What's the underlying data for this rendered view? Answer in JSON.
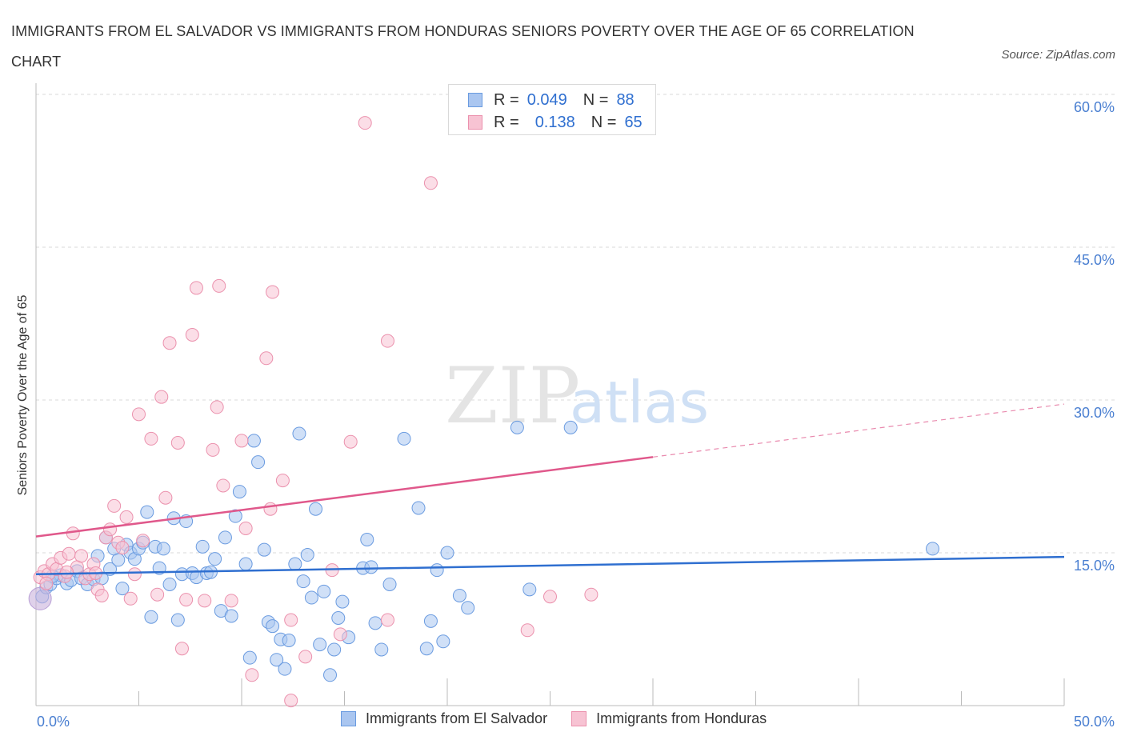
{
  "title": "IMMIGRANTS FROM EL SALVADOR VS IMMIGRANTS FROM HONDURAS SENIORS POVERTY OVER THE AGE OF 65 CORRELATION CHART",
  "source": "Source: ZipAtlas.com",
  "watermark": {
    "zip": "ZIP",
    "atlas": "atlas"
  },
  "legend": {
    "r_label": "R =",
    "n_label": "N =",
    "salvador": {
      "r": "0.049",
      "n": "88"
    },
    "honduras": {
      "r": "0.138",
      "n": "65"
    }
  },
  "colors": {
    "salvador_fill": "#aac6f0",
    "salvador_stroke": "#6a9be0",
    "salvador_line": "#2f6fd0",
    "honduras_fill": "#f7c3d3",
    "honduras_stroke": "#eb91ad",
    "honduras_line": "#e0588b",
    "tick": "#4a7fd1",
    "grid": "#d8d8d8"
  },
  "chart_data": {
    "type": "scatter",
    "title": "IMMIGRANTS FROM EL SALVADOR VS IMMIGRANTS FROM HONDURAS SENIORS POVERTY OVER THE AGE OF 65 CORRELATION CHART",
    "xlabel": "",
    "ylabel": "Seniors Poverty Over the Age of 65",
    "xlim": [
      0,
      50
    ],
    "ylim": [
      0,
      60
    ],
    "x_tick_labels": [
      "0.0%",
      "50.0%"
    ],
    "y_ticks": [
      15,
      30,
      45,
      60
    ],
    "y_tick_labels": [
      "15.0%",
      "30.0%",
      "45.0%",
      "60.0%"
    ],
    "grid": "horizontal dashed",
    "legend_position": "top-center",
    "series": [
      {
        "name": "Immigrants from El Salvador",
        "color": "#aac6f0",
        "trend": {
          "x": [
            0,
            50
          ],
          "y": [
            12.9,
            14.6
          ],
          "dashed_from": null
        },
        "points": [
          [
            0.3,
            10.7
          ],
          [
            0.5,
            11.6
          ],
          [
            0.7,
            11.9
          ],
          [
            1,
            12.5
          ],
          [
            1.2,
            12.8
          ],
          [
            1.5,
            12
          ],
          [
            1.7,
            12.3
          ],
          [
            2,
            13.2
          ],
          [
            2.2,
            12.5
          ],
          [
            2.5,
            11.9
          ],
          [
            2.8,
            12.4
          ],
          [
            3,
            14.7
          ],
          [
            3.2,
            12.5
          ],
          [
            3.4,
            16.5
          ],
          [
            3.6,
            13.4
          ],
          [
            3.8,
            15.4
          ],
          [
            4,
            14.3
          ],
          [
            4.2,
            11.5
          ],
          [
            4.4,
            15.8
          ],
          [
            4.6,
            15
          ],
          [
            4.8,
            14.4
          ],
          [
            5,
            15.4
          ],
          [
            5.2,
            16
          ],
          [
            5.4,
            19
          ],
          [
            5.6,
            8.7
          ],
          [
            5.8,
            15.6
          ],
          [
            6,
            13.5
          ],
          [
            6.2,
            15.4
          ],
          [
            6.5,
            11.9
          ],
          [
            6.7,
            18.4
          ],
          [
            6.9,
            8.4
          ],
          [
            7.1,
            12.9
          ],
          [
            7.3,
            18.1
          ],
          [
            7.6,
            13
          ],
          [
            7.8,
            12.6
          ],
          [
            8.1,
            15.6
          ],
          [
            8.3,
            13
          ],
          [
            8.5,
            13.1
          ],
          [
            8.7,
            14.4
          ],
          [
            9,
            9.3
          ],
          [
            9.2,
            16.5
          ],
          [
            9.5,
            8.8
          ],
          [
            9.7,
            18.6
          ],
          [
            9.9,
            21
          ],
          [
            10.2,
            13.9
          ],
          [
            10.4,
            4.7
          ],
          [
            10.6,
            26
          ],
          [
            10.8,
            23.9
          ],
          [
            11.1,
            15.3
          ],
          [
            11.3,
            8.2
          ],
          [
            11.5,
            7.8
          ],
          [
            11.7,
            4.5
          ],
          [
            11.9,
            6.5
          ],
          [
            12.1,
            3.6
          ],
          [
            12.3,
            6.4
          ],
          [
            12.6,
            13.9
          ],
          [
            12.8,
            26.7
          ],
          [
            13,
            12.2
          ],
          [
            13.2,
            14.8
          ],
          [
            13.4,
            10.6
          ],
          [
            13.6,
            19.3
          ],
          [
            13.8,
            6
          ],
          [
            14,
            11.2
          ],
          [
            14.3,
            3
          ],
          [
            14.5,
            5.5
          ],
          [
            14.7,
            8.6
          ],
          [
            14.9,
            10.2
          ],
          [
            15.2,
            6.7
          ],
          [
            15.9,
            13.5
          ],
          [
            16.1,
            16.3
          ],
          [
            16.3,
            13.6
          ],
          [
            16.5,
            8.1
          ],
          [
            16.8,
            5.5
          ],
          [
            17.2,
            11.9
          ],
          [
            17.9,
            26.2
          ],
          [
            18.6,
            19.4
          ],
          [
            19,
            5.6
          ],
          [
            19.2,
            8.3
          ],
          [
            19.5,
            13.3
          ],
          [
            19.8,
            6.3
          ],
          [
            20,
            15
          ],
          [
            20.6,
            10.8
          ],
          [
            21,
            9.6
          ],
          [
            23.4,
            27.3
          ],
          [
            24,
            11.4
          ],
          [
            26,
            27.3
          ],
          [
            43.6,
            15.4
          ],
          [
            0.8,
            12.7
          ]
        ]
      },
      {
        "name": "Immigrants from Honduras",
        "color": "#f7c3d3",
        "trend": {
          "x": [
            0,
            50
          ],
          "y": [
            16.6,
            29.6
          ],
          "dashed_from": 30
        },
        "points": [
          [
            0.2,
            12.6
          ],
          [
            0.4,
            13.2
          ],
          [
            0.6,
            12.9
          ],
          [
            0.8,
            13.9
          ],
          [
            1,
            13.4
          ],
          [
            1.2,
            14.5
          ],
          [
            1.4,
            12.7
          ],
          [
            1.6,
            14.9
          ],
          [
            1.8,
            16.9
          ],
          [
            2,
            13.6
          ],
          [
            2.2,
            14.7
          ],
          [
            2.4,
            12.5
          ],
          [
            2.6,
            12.9
          ],
          [
            2.8,
            13.9
          ],
          [
            3,
            11.4
          ],
          [
            3.2,
            10.8
          ],
          [
            3.4,
            16.5
          ],
          [
            3.6,
            17.3
          ],
          [
            3.8,
            19.6
          ],
          [
            4,
            16
          ],
          [
            4.2,
            15.5
          ],
          [
            4.4,
            18.5
          ],
          [
            4.6,
            10.5
          ],
          [
            4.8,
            12.9
          ],
          [
            5,
            28.6
          ],
          [
            5.2,
            16.2
          ],
          [
            5.6,
            26.2
          ],
          [
            5.9,
            10.9
          ],
          [
            6.1,
            30.3
          ],
          [
            6.3,
            20.4
          ],
          [
            6.5,
            35.6
          ],
          [
            6.9,
            25.8
          ],
          [
            7.1,
            5.6
          ],
          [
            7.3,
            10.4
          ],
          [
            7.6,
            36.4
          ],
          [
            7.8,
            41
          ],
          [
            8.2,
            10.3
          ],
          [
            8.6,
            25.1
          ],
          [
            8.8,
            29.3
          ],
          [
            8.9,
            41.2
          ],
          [
            9.1,
            21.6
          ],
          [
            9.5,
            10.3
          ],
          [
            10,
            26
          ],
          [
            10.2,
            17.4
          ],
          [
            10.5,
            3
          ],
          [
            11.2,
            34.1
          ],
          [
            11.4,
            19.3
          ],
          [
            11.5,
            40.6
          ],
          [
            12,
            22.1
          ],
          [
            12.4,
            8.4
          ],
          [
            12.4,
            0.5
          ],
          [
            13.1,
            4.8
          ],
          [
            14.4,
            13.3
          ],
          [
            14.8,
            7
          ],
          [
            15.3,
            25.9
          ],
          [
            16,
            57.2
          ],
          [
            17.1,
            8.4
          ],
          [
            17.1,
            35.8
          ],
          [
            19.2,
            51.3
          ],
          [
            23.9,
            7.4
          ],
          [
            25,
            10.7
          ],
          [
            27,
            10.9
          ],
          [
            0.5,
            12
          ],
          [
            1.5,
            13.1
          ],
          [
            2.9,
            13
          ]
        ]
      }
    ]
  },
  "bottom_legend": {
    "salvador": "Immigrants from El Salvador",
    "honduras": "Immigrants from Honduras"
  }
}
